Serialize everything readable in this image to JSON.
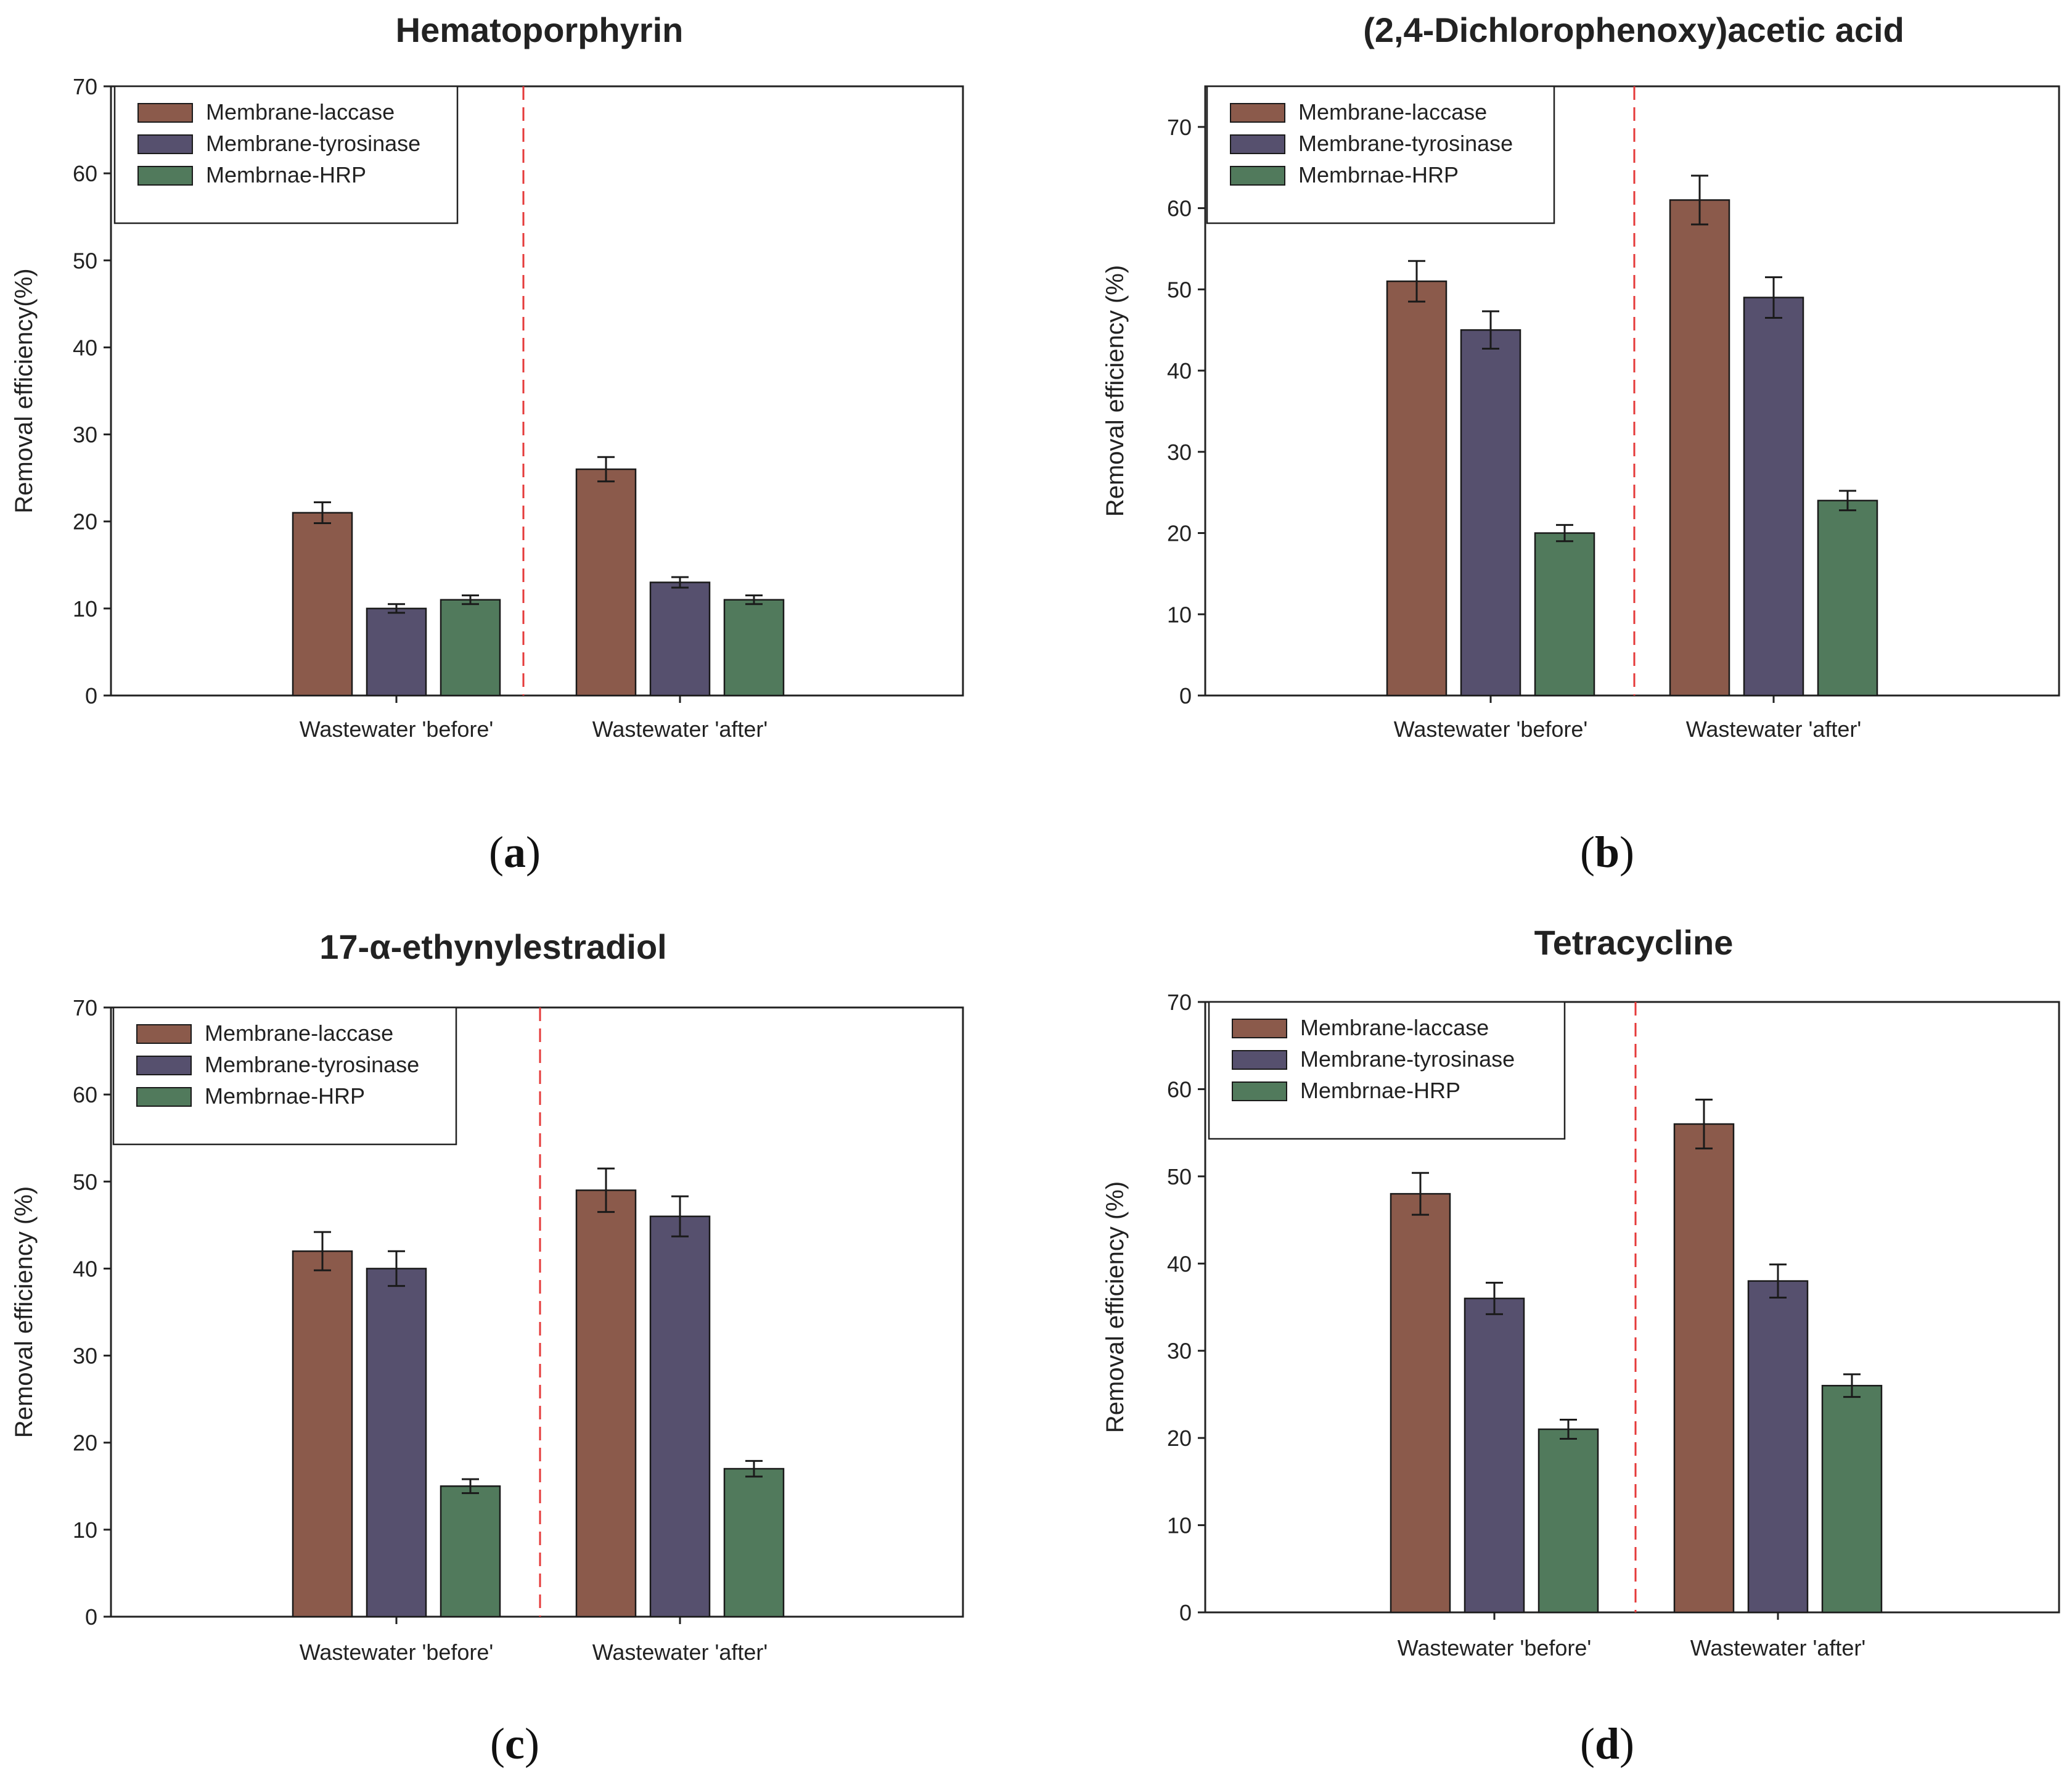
{
  "colors": {
    "laccase": "#8b5a4b",
    "tyrosinase": "#56506e",
    "hrp": "#517a5c",
    "divider": "#e53a3a",
    "axis": "#222222"
  },
  "chart_data": [
    {
      "type": "bar",
      "panel": "a",
      "caption": "(a)",
      "caption_letter": "a",
      "title": "Hematoporphyrin",
      "ylabel": "Removal efficiency(%)",
      "xlabel": "",
      "ylim": [
        0,
        70
      ],
      "yticks": [
        0,
        10,
        20,
        30,
        40,
        50,
        60,
        70
      ],
      "categories": [
        "Wastewater 'before'",
        "Wastewater 'after'"
      ],
      "legend": "top-left",
      "series": [
        {
          "name": "Membrane-laccase",
          "values": [
            21,
            26
          ],
          "errors": [
            1.2,
            1.4
          ]
        },
        {
          "name": "Membrane-tyrosinase",
          "values": [
            10,
            13
          ],
          "errors": [
            0.5,
            0.6
          ]
        },
        {
          "name": "Membrnae-HRP",
          "values": [
            11,
            11
          ],
          "errors": [
            0.5,
            0.5
          ]
        }
      ]
    },
    {
      "type": "bar",
      "panel": "b",
      "caption": "(b)",
      "caption_letter": "b",
      "title": "(2,4-Dichlorophenoxy)acetic acid",
      "ylabel": "Removal efficiency (%)",
      "xlabel": "",
      "ylim": [
        0,
        75
      ],
      "yticks": [
        0,
        10,
        20,
        30,
        40,
        50,
        60,
        70
      ],
      "categories": [
        "Wastewater 'before'",
        "Wastewater 'after'"
      ],
      "legend": "top-left",
      "series": [
        {
          "name": "Membrane-laccase",
          "values": [
            51,
            61
          ],
          "errors": [
            2.5,
            3.0
          ]
        },
        {
          "name": "Membrane-tyrosinase",
          "values": [
            45,
            49
          ],
          "errors": [
            2.3,
            2.5
          ]
        },
        {
          "name": "Membrnae-HRP",
          "values": [
            20,
            24
          ],
          "errors": [
            1.0,
            1.2
          ]
        }
      ]
    },
    {
      "type": "bar",
      "panel": "c",
      "caption": "(c)",
      "caption_letter": "c",
      "title": "17-α-ethynylestradiol",
      "ylabel": "Removal efficiency (%)",
      "xlabel": "",
      "ylim": [
        0,
        70
      ],
      "yticks": [
        0,
        10,
        20,
        30,
        40,
        50,
        60,
        70
      ],
      "categories": [
        "Wastewater 'before'",
        "Wastewater 'after'"
      ],
      "legend": "top-left",
      "series": [
        {
          "name": "Membrane-laccase",
          "values": [
            42,
            49
          ],
          "errors": [
            2.2,
            2.5
          ]
        },
        {
          "name": "Membrane-tyrosinase",
          "values": [
            40,
            46
          ],
          "errors": [
            2.0,
            2.3
          ]
        },
        {
          "name": "Membrnae-HRP",
          "values": [
            15,
            17
          ],
          "errors": [
            0.8,
            0.9
          ]
        }
      ]
    },
    {
      "type": "bar",
      "panel": "d",
      "caption": "(d)",
      "caption_letter": "d",
      "title": "Tetracycline",
      "ylabel": "Removal efficiency (%)",
      "xlabel": "",
      "ylim": [
        0,
        70
      ],
      "yticks": [
        0,
        10,
        20,
        30,
        40,
        50,
        60,
        70
      ],
      "categories": [
        "Wastewater 'before'",
        "Wastewater 'after'"
      ],
      "legend": "top-left",
      "series": [
        {
          "name": "Membrane-laccase",
          "values": [
            48,
            56
          ],
          "errors": [
            2.4,
            2.8
          ]
        },
        {
          "name": "Membrane-tyrosinase",
          "values": [
            36,
            38
          ],
          "errors": [
            1.8,
            1.9
          ]
        },
        {
          "name": "Membrnae-HRP",
          "values": [
            21,
            26
          ],
          "errors": [
            1.1,
            1.3
          ]
        }
      ]
    }
  ]
}
